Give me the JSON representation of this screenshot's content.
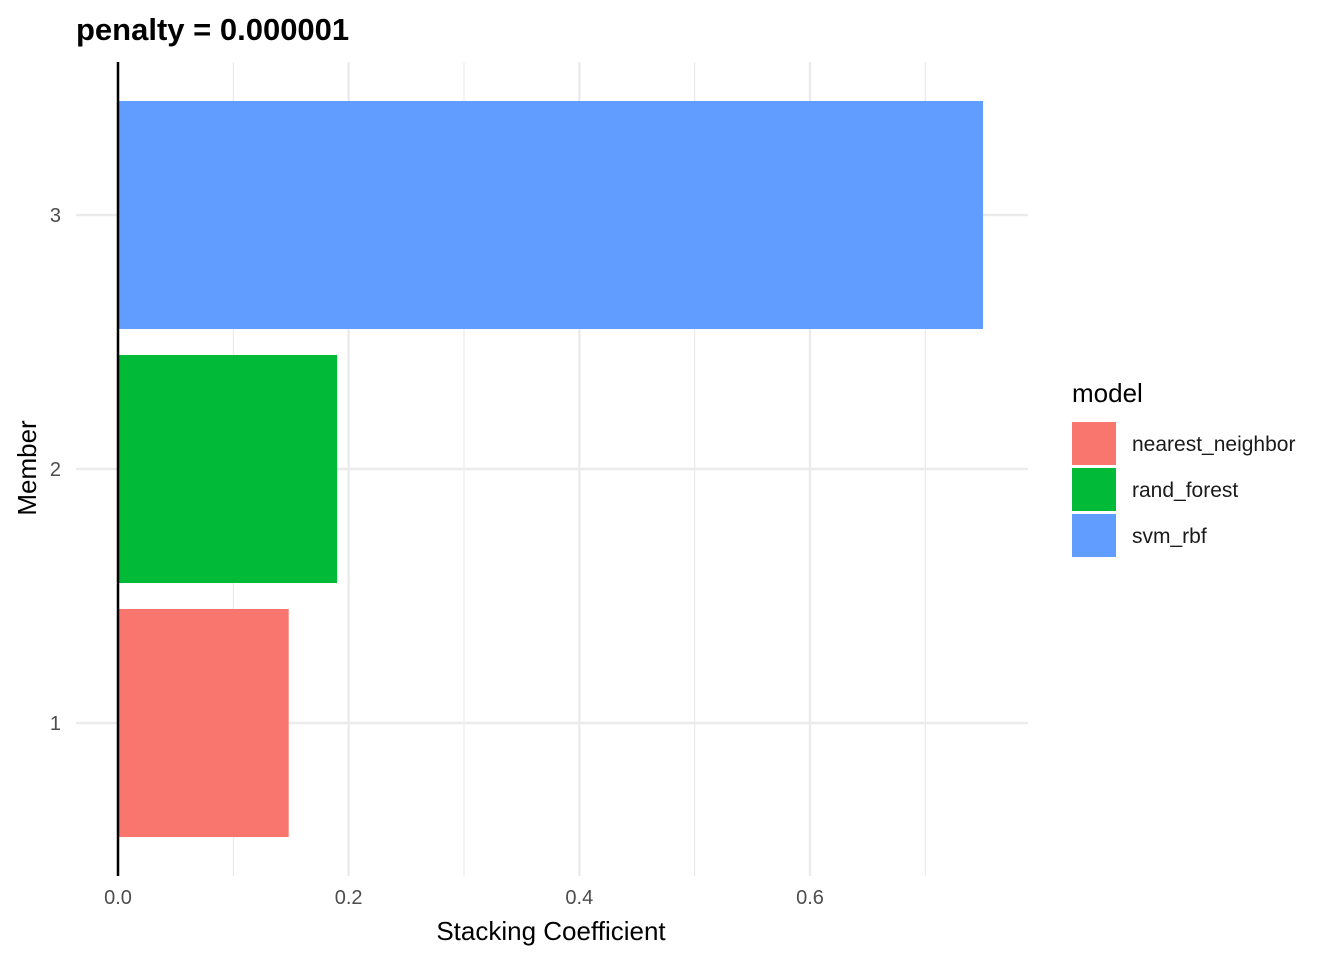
{
  "chart_data": {
    "type": "bar",
    "orientation": "horizontal",
    "title": "penalty = 0.000001",
    "xlabel": "Stacking Coefficient",
    "ylabel": "Member",
    "xlim": [
      0,
      0.78
    ],
    "x_ticks": [
      0.0,
      0.2,
      0.4,
      0.6
    ],
    "x_tick_labels": [
      "0.0",
      "0.2",
      "0.4",
      "0.6"
    ],
    "categories": [
      "1",
      "2",
      "3"
    ],
    "values": [
      0.148,
      0.19,
      0.75
    ],
    "bar_models": [
      "nearest_neighbor",
      "rand_forest",
      "svm_rbf"
    ],
    "grid": true,
    "legend": {
      "title": "model",
      "position": "right",
      "entries": [
        {
          "label": "nearest_neighbor",
          "color": "#F8766D"
        },
        {
          "label": "rand_forest",
          "color": "#00BA38"
        },
        {
          "label": "svm_rbf",
          "color": "#619CFF"
        }
      ]
    }
  }
}
